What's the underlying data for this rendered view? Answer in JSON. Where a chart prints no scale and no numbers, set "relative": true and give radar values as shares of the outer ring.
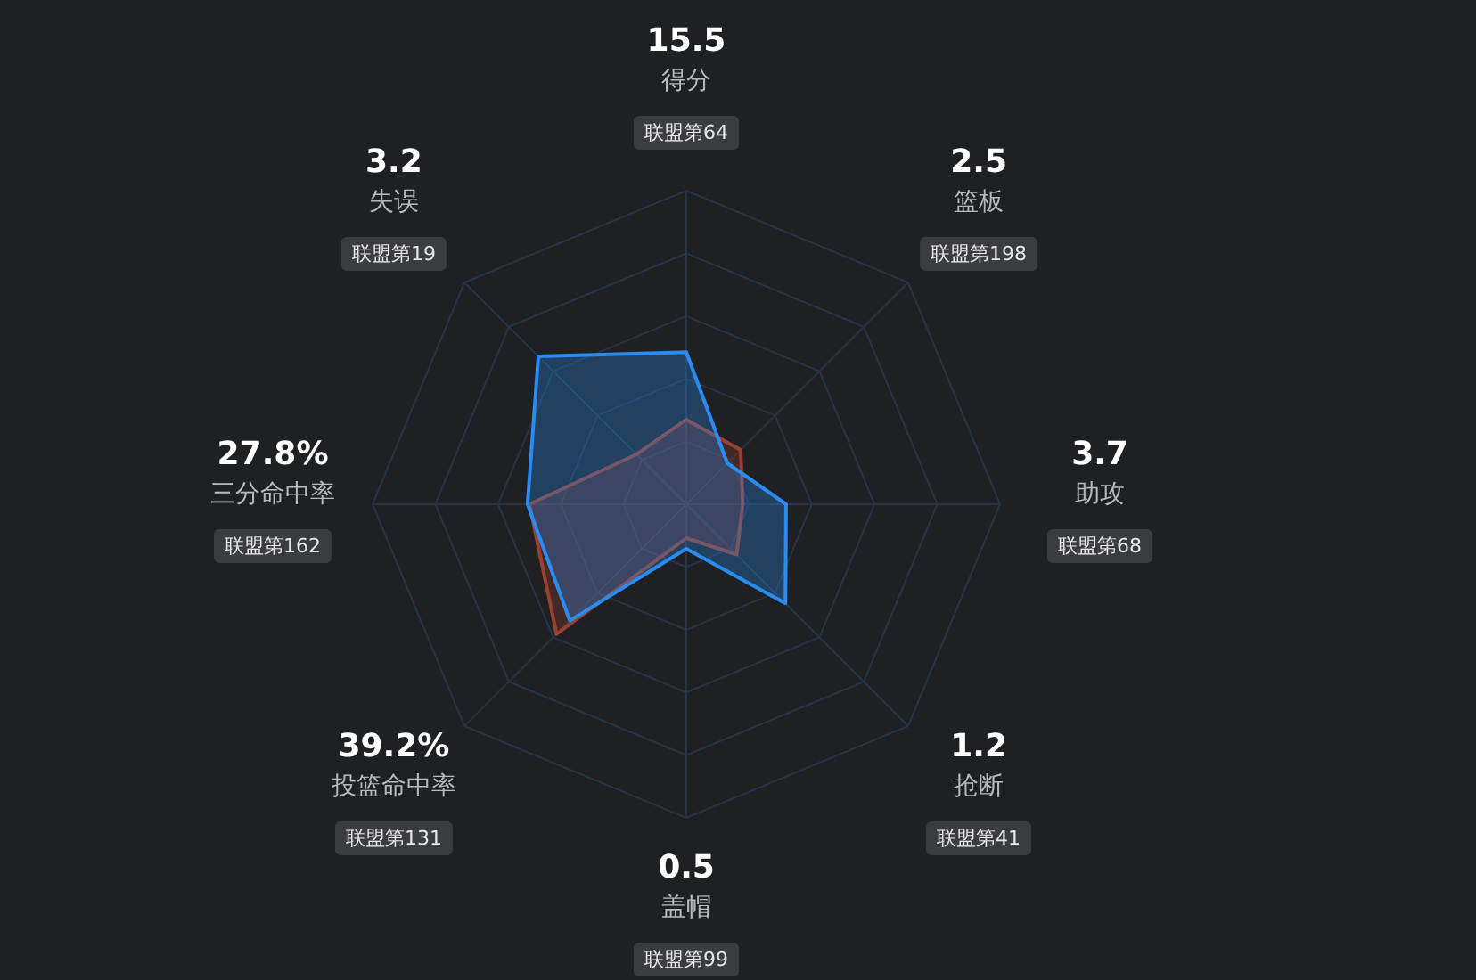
{
  "chart_data": {
    "type": "radar",
    "relative": true,
    "grid": true,
    "legend": false,
    "marker": "none",
    "categories": [
      "得分",
      "篮板",
      "助攻",
      "抢断",
      "盖帽",
      "投篮命中率",
      "三分命中率",
      "失误"
    ],
    "series": [
      {
        "color": "#2a8cf0",
        "values": [
          0.485,
          0.185,
          0.318,
          0.447,
          0.142,
          0.525,
          0.506,
          0.667
        ]
      },
      {
        "color": "#9a4030",
        "values": [
          0.27,
          0.245,
          0.18,
          0.227,
          0.108,
          0.585,
          0.5,
          0.225
        ]
      }
    ],
    "annotations": [
      "15.5",
      "联盟第64",
      "2.5",
      "联盟第198",
      "3.7",
      "联盟第68",
      "1.2",
      "联盟第41",
      "0.5",
      "联盟第99",
      "39.2%",
      "联盟第131",
      "27.8%",
      "联盟第162",
      "3.2",
      "联盟第19"
    ]
  }
}
